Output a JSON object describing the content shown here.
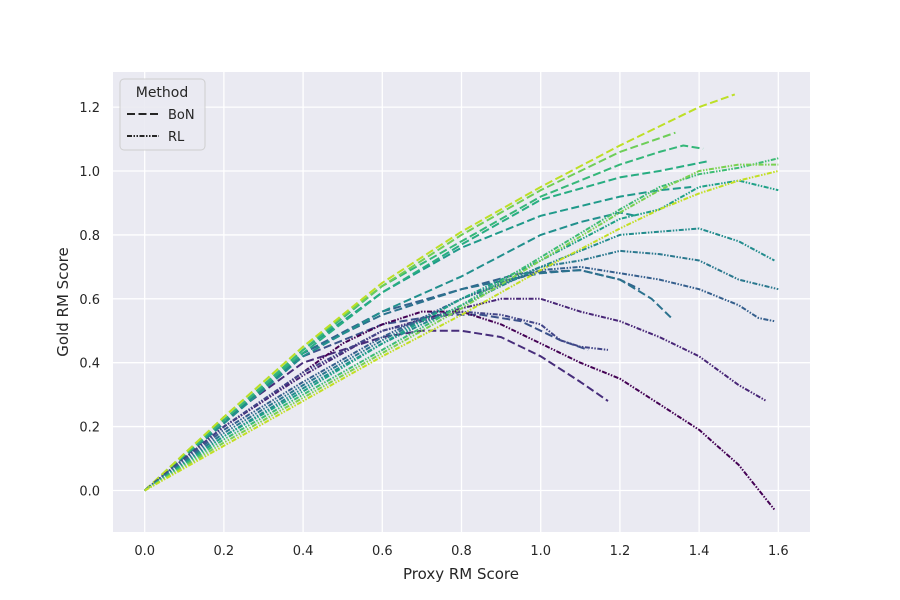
{
  "chart_data": {
    "type": "line",
    "title": "",
    "xlabel": "Proxy RM Score",
    "ylabel": "Gold RM Score",
    "xlim": [
      -0.08,
      1.68
    ],
    "ylim": [
      -0.13,
      1.31
    ],
    "xticks": [
      0.0,
      0.2,
      0.4,
      0.6,
      0.8,
      1.0,
      1.2,
      1.4,
      1.6
    ],
    "xtick_labels": [
      "0.0",
      "0.2",
      "0.4",
      "0.6",
      "0.8",
      "1.0",
      "1.2",
      "1.4",
      "1.6"
    ],
    "yticks": [
      0.0,
      0.2,
      0.4,
      0.6,
      0.8,
      1.0,
      1.2
    ],
    "ytick_labels": [
      "0.0",
      "0.2",
      "0.4",
      "0.6",
      "0.8",
      "1.0",
      "1.2"
    ],
    "grid": true,
    "background": "#eaeaf2",
    "legend": {
      "title": "Method",
      "placement": "top-left",
      "entries": [
        {
          "label": "BoN",
          "style": "dashed"
        },
        {
          "label": "RL",
          "style": "dashdotdot"
        }
      ]
    },
    "series": [
      {
        "method": "BoN",
        "color": "#472d7b",
        "x": [
          0.0,
          0.2,
          0.4,
          0.6,
          0.7,
          0.8,
          0.9,
          1.0,
          1.1,
          1.17
        ],
        "y": [
          0.0,
          0.22,
          0.4,
          0.48,
          0.5,
          0.5,
          0.48,
          0.42,
          0.34,
          0.28
        ]
      },
      {
        "method": "BoN",
        "color": "#3b528b",
        "x": [
          0.0,
          0.2,
          0.4,
          0.6,
          0.75,
          0.85,
          0.95,
          1.05,
          1.12
        ],
        "y": [
          0.0,
          0.22,
          0.42,
          0.52,
          0.55,
          0.55,
          0.53,
          0.47,
          0.44
        ]
      },
      {
        "method": "BoN",
        "color": "#33638d",
        "x": [
          0.0,
          0.2,
          0.4,
          0.6,
          0.8,
          0.95,
          1.1,
          1.2,
          1.25
        ],
        "y": [
          0.0,
          0.21,
          0.43,
          0.56,
          0.63,
          0.68,
          0.69,
          0.66,
          0.63
        ]
      },
      {
        "method": "BoN",
        "color": "#2c728e",
        "x": [
          0.0,
          0.2,
          0.4,
          0.6,
          0.8,
          1.0,
          1.1,
          1.2,
          1.28,
          1.33
        ],
        "y": [
          0.0,
          0.21,
          0.43,
          0.55,
          0.63,
          0.68,
          0.69,
          0.66,
          0.6,
          0.54
        ]
      },
      {
        "method": "BoN",
        "color": "#21908d",
        "x": [
          0.0,
          0.2,
          0.4,
          0.6,
          0.8,
          1.0,
          1.1,
          1.2,
          1.24
        ],
        "y": [
          0.0,
          0.21,
          0.42,
          0.56,
          0.67,
          0.8,
          0.84,
          0.87,
          0.86
        ]
      },
      {
        "method": "BoN",
        "color": "#1f9a8a",
        "x": [
          0.0,
          0.2,
          0.4,
          0.6,
          0.8,
          1.0,
          1.2,
          1.3,
          1.38
        ],
        "y": [
          0.0,
          0.22,
          0.44,
          0.62,
          0.76,
          0.86,
          0.92,
          0.94,
          0.95
        ]
      },
      {
        "method": "BoN",
        "color": "#27ad81",
        "x": [
          0.0,
          0.2,
          0.4,
          0.6,
          0.8,
          1.0,
          1.2,
          1.3,
          1.42
        ],
        "y": [
          0.0,
          0.22,
          0.43,
          0.62,
          0.77,
          0.91,
          0.98,
          1.0,
          1.03
        ]
      },
      {
        "method": "BoN",
        "color": "#35b779",
        "x": [
          0.0,
          0.2,
          0.4,
          0.6,
          0.8,
          1.0,
          1.2,
          1.3,
          1.36,
          1.41
        ],
        "y": [
          0.0,
          0.22,
          0.44,
          0.64,
          0.78,
          0.92,
          1.02,
          1.06,
          1.08,
          1.07
        ]
      },
      {
        "method": "BoN",
        "color": "#6ece58",
        "x": [
          0.0,
          0.2,
          0.4,
          0.6,
          0.8,
          1.0,
          1.2,
          1.34
        ],
        "y": [
          0.0,
          0.23,
          0.45,
          0.64,
          0.8,
          0.94,
          1.06,
          1.12
        ]
      },
      {
        "method": "BoN",
        "color": "#bddf26",
        "x": [
          0.0,
          0.2,
          0.4,
          0.6,
          0.8,
          1.0,
          1.2,
          1.4,
          1.49
        ],
        "y": [
          0.0,
          0.23,
          0.45,
          0.65,
          0.81,
          0.95,
          1.08,
          1.2,
          1.24
        ]
      },
      {
        "method": "RL",
        "color": "#440154",
        "x": [
          0.0,
          0.1,
          0.2,
          0.3,
          0.4,
          0.5,
          0.6,
          0.7,
          0.8,
          0.9,
          1.0,
          1.1,
          1.2,
          1.3,
          1.4,
          1.5,
          1.59
        ],
        "y": [
          0.0,
          0.1,
          0.2,
          0.28,
          0.37,
          0.46,
          0.52,
          0.56,
          0.56,
          0.52,
          0.46,
          0.4,
          0.35,
          0.27,
          0.19,
          0.08,
          -0.06
        ]
      },
      {
        "method": "RL",
        "color": "#482677",
        "x": [
          0.0,
          0.2,
          0.4,
          0.6,
          0.8,
          0.9,
          1.0,
          1.1,
          1.2,
          1.3,
          1.4,
          1.5,
          1.57
        ],
        "y": [
          0.0,
          0.2,
          0.36,
          0.5,
          0.57,
          0.6,
          0.6,
          0.56,
          0.53,
          0.48,
          0.42,
          0.33,
          0.28
        ]
      },
      {
        "method": "RL",
        "color": "#414487",
        "x": [
          0.0,
          0.2,
          0.4,
          0.6,
          0.8,
          0.9,
          1.0,
          1.05,
          1.1,
          1.17
        ],
        "y": [
          0.0,
          0.2,
          0.37,
          0.5,
          0.56,
          0.55,
          0.52,
          0.47,
          0.45,
          0.44
        ]
      },
      {
        "method": "RL",
        "color": "#355f8d",
        "x": [
          0.0,
          0.2,
          0.4,
          0.6,
          0.8,
          1.0,
          1.1,
          1.2,
          1.3,
          1.4,
          1.5,
          1.55,
          1.59
        ],
        "y": [
          0.0,
          0.19,
          0.34,
          0.48,
          0.6,
          0.69,
          0.7,
          0.68,
          0.66,
          0.63,
          0.58,
          0.54,
          0.53
        ]
      },
      {
        "method": "RL",
        "color": "#2a788e",
        "x": [
          0.0,
          0.2,
          0.4,
          0.6,
          0.8,
          1.0,
          1.1,
          1.2,
          1.3,
          1.4,
          1.5,
          1.6
        ],
        "y": [
          0.0,
          0.18,
          0.33,
          0.47,
          0.6,
          0.7,
          0.72,
          0.75,
          0.74,
          0.72,
          0.66,
          0.63
        ]
      },
      {
        "method": "RL",
        "color": "#228c8d",
        "x": [
          0.0,
          0.2,
          0.4,
          0.6,
          0.8,
          1.0,
          1.1,
          1.2,
          1.3,
          1.4,
          1.5,
          1.59
        ],
        "y": [
          0.0,
          0.17,
          0.32,
          0.46,
          0.58,
          0.7,
          0.75,
          0.8,
          0.81,
          0.82,
          0.78,
          0.72
        ]
      },
      {
        "method": "RL",
        "color": "#1fa187",
        "x": [
          0.0,
          0.2,
          0.4,
          0.6,
          0.8,
          1.0,
          1.2,
          1.3,
          1.4,
          1.5,
          1.6
        ],
        "y": [
          0.0,
          0.17,
          0.31,
          0.46,
          0.6,
          0.72,
          0.85,
          0.88,
          0.95,
          0.97,
          0.94
        ]
      },
      {
        "method": "RL",
        "color": "#3dbc74",
        "x": [
          0.0,
          0.2,
          0.4,
          0.6,
          0.8,
          1.0,
          1.2,
          1.3,
          1.4,
          1.5,
          1.6
        ],
        "y": [
          0.0,
          0.16,
          0.3,
          0.44,
          0.58,
          0.73,
          0.88,
          0.95,
          0.99,
          1.01,
          1.04
        ]
      },
      {
        "method": "RL",
        "color": "#7ad151",
        "x": [
          0.0,
          0.2,
          0.4,
          0.6,
          0.8,
          1.0,
          1.2,
          1.3,
          1.4,
          1.5,
          1.6
        ],
        "y": [
          0.0,
          0.15,
          0.29,
          0.43,
          0.57,
          0.72,
          0.87,
          0.94,
          1.0,
          1.02,
          1.02
        ]
      },
      {
        "method": "RL",
        "color": "#c2df23",
        "x": [
          0.0,
          0.2,
          0.4,
          0.6,
          0.8,
          1.0,
          1.2,
          1.3,
          1.4,
          1.5,
          1.6
        ],
        "y": [
          0.0,
          0.14,
          0.28,
          0.42,
          0.55,
          0.69,
          0.82,
          0.88,
          0.93,
          0.97,
          1.0
        ]
      }
    ]
  }
}
